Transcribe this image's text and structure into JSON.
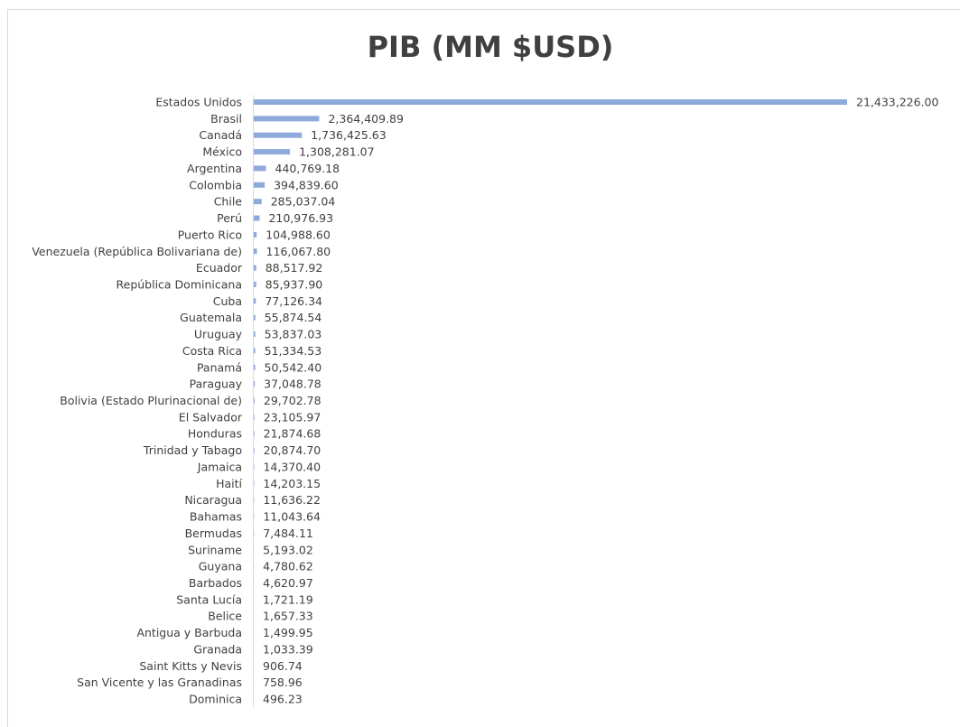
{
  "chart_data": {
    "type": "hbar",
    "title": "PIB (MM $USD)",
    "color": "#8eaadb",
    "categories": [
      "Estados Unidos",
      "Brasil",
      "Canadá",
      "México",
      "Argentina",
      "Colombia",
      "Chile",
      "Perú",
      "Puerto Rico",
      "Venezuela (República Bolivariana de)",
      "Ecuador",
      "República Dominicana",
      "Cuba",
      "Guatemala",
      "Uruguay",
      "Costa Rica",
      "Panamá",
      "Paraguay",
      "Bolivia (Estado Plurinacional de)",
      "El Salvador",
      "Honduras",
      "Trinidad y Tabago",
      "Jamaica",
      "Haití",
      "Nicaragua",
      "Bahamas",
      "Bermudas",
      "Suriname",
      "Guyana",
      "Barbados",
      "Santa Lucía",
      "Belice",
      "Antigua y Barbuda",
      "Granada",
      "Saint Kitts y Nevis",
      "San Vicente y las Granadinas",
      "Dominica"
    ],
    "values": [
      21433226,
      2364409.89,
      1736425.63,
      1308281.07,
      440769.18,
      394839.6,
      285037.04,
      210976.93,
      104988.6,
      116067.8,
      88517.92,
      85937.9,
      77126.34,
      55874.54,
      53837.03,
      51334.53,
      50542.4,
      37048.78,
      29702.78,
      23105.97,
      21874.68,
      20874.7,
      14370.4,
      14203.15,
      11636.22,
      11043.64,
      7484.11,
      5193.02,
      4780.62,
      4620.97,
      1721.19,
      1657.33,
      1499.95,
      1033.39,
      906.74,
      758.96,
      496.23
    ],
    "value_labels": [
      "21,433,226.00",
      "2,364,409.89",
      "1,736,425.63",
      "1,308,281.07",
      "440,769.18",
      "394,839.60",
      "285,037.04",
      "210,976.93",
      "104,988.60",
      "116,067.80",
      "88,517.92",
      "85,937.90",
      "77,126.34",
      "55,874.54",
      "53,837.03",
      "51,334.53",
      "50,542.40",
      "37,048.78",
      "29,702.78",
      "23,105.97",
      "21,874.68",
      "20,874.70",
      "14,370.40",
      "14,203.15",
      "11,636.22",
      "11,043.64",
      "7,484.11",
      "5,193.02",
      "4,780.62",
      "4,620.97",
      "1,721.19",
      "1,657.33",
      "1,499.95",
      "1,033.39",
      "906.74",
      "758.96",
      "496.23"
    ]
  }
}
